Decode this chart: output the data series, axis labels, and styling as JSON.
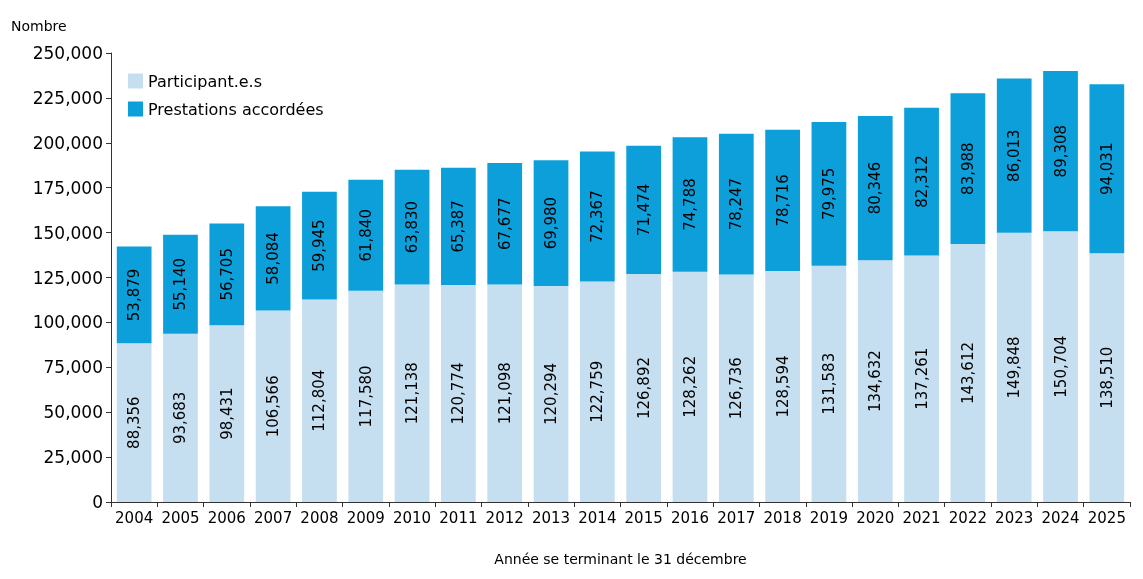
{
  "chart_data": {
    "type": "bar",
    "stacked": true,
    "ylabel": "Nombre",
    "xlabel": "Année se terminant le 31 décembre",
    "categories": [
      "2004",
      "2005",
      "2006",
      "2007",
      "2008",
      "2009",
      "2010",
      "2011",
      "2012",
      "2013",
      "2014",
      "2015",
      "2016",
      "2017",
      "2018",
      "2019",
      "2020",
      "2021",
      "2022",
      "2023",
      "2024",
      "2025"
    ],
    "series": [
      {
        "name": "Participant.e.s",
        "color": "#c5dff0",
        "values": [
          88356,
          93683,
          98431,
          106566,
          112804,
          117580,
          121138,
          120774,
          121098,
          120294,
          122759,
          126892,
          128262,
          126736,
          128594,
          131583,
          134632,
          137261,
          143612,
          149848,
          150704,
          138510
        ],
        "value_labels": [
          "88,356",
          "93,683",
          "98,431",
          "106,566",
          "112,804",
          "117,580",
          "121,138",
          "120,774",
          "121,098",
          "120,294",
          "122,759",
          "126,892",
          "128,262",
          "126,736",
          "128,594",
          "131,583",
          "134,632",
          "137,261",
          "143,612",
          "149,848",
          "150,704",
          "138,510"
        ]
      },
      {
        "name": "Prestations accordées",
        "color": "#0c9fd9",
        "values": [
          53879,
          55140,
          56705,
          58084,
          59945,
          61840,
          63830,
          65387,
          67677,
          69980,
          72367,
          71474,
          74788,
          78247,
          78716,
          79975,
          80346,
          82312,
          83988,
          86013,
          89308,
          94031
        ],
        "value_labels": [
          "53,879",
          "55,140",
          "56,705",
          "58,084",
          "59,945",
          "61,840",
          "63,830",
          "65,387",
          "67,677",
          "69,980",
          "72,367",
          "71,474",
          "74,788",
          "78,247",
          "78,716",
          "79,975",
          "80,346",
          "82,312",
          "83,988",
          "86,013",
          "89,308",
          "94,031"
        ]
      }
    ],
    "ylim": [
      0,
      250000
    ],
    "yticks": [
      {
        "value": 0,
        "label": "0"
      },
      {
        "value": 25000,
        "label": "25,000"
      },
      {
        "value": 50000,
        "label": "50,000"
      },
      {
        "value": 75000,
        "label": "75,000"
      },
      {
        "value": 100000,
        "label": "100,000"
      },
      {
        "value": 125000,
        "label": "125,000"
      },
      {
        "value": 150000,
        "label": "150,000"
      },
      {
        "value": 175000,
        "label": "175,000"
      },
      {
        "value": 200000,
        "label": "200,000"
      },
      {
        "value": 225000,
        "label": "225,000"
      },
      {
        "value": 250000,
        "label": "250,000"
      }
    ],
    "grid": false,
    "legend": "top left"
  }
}
